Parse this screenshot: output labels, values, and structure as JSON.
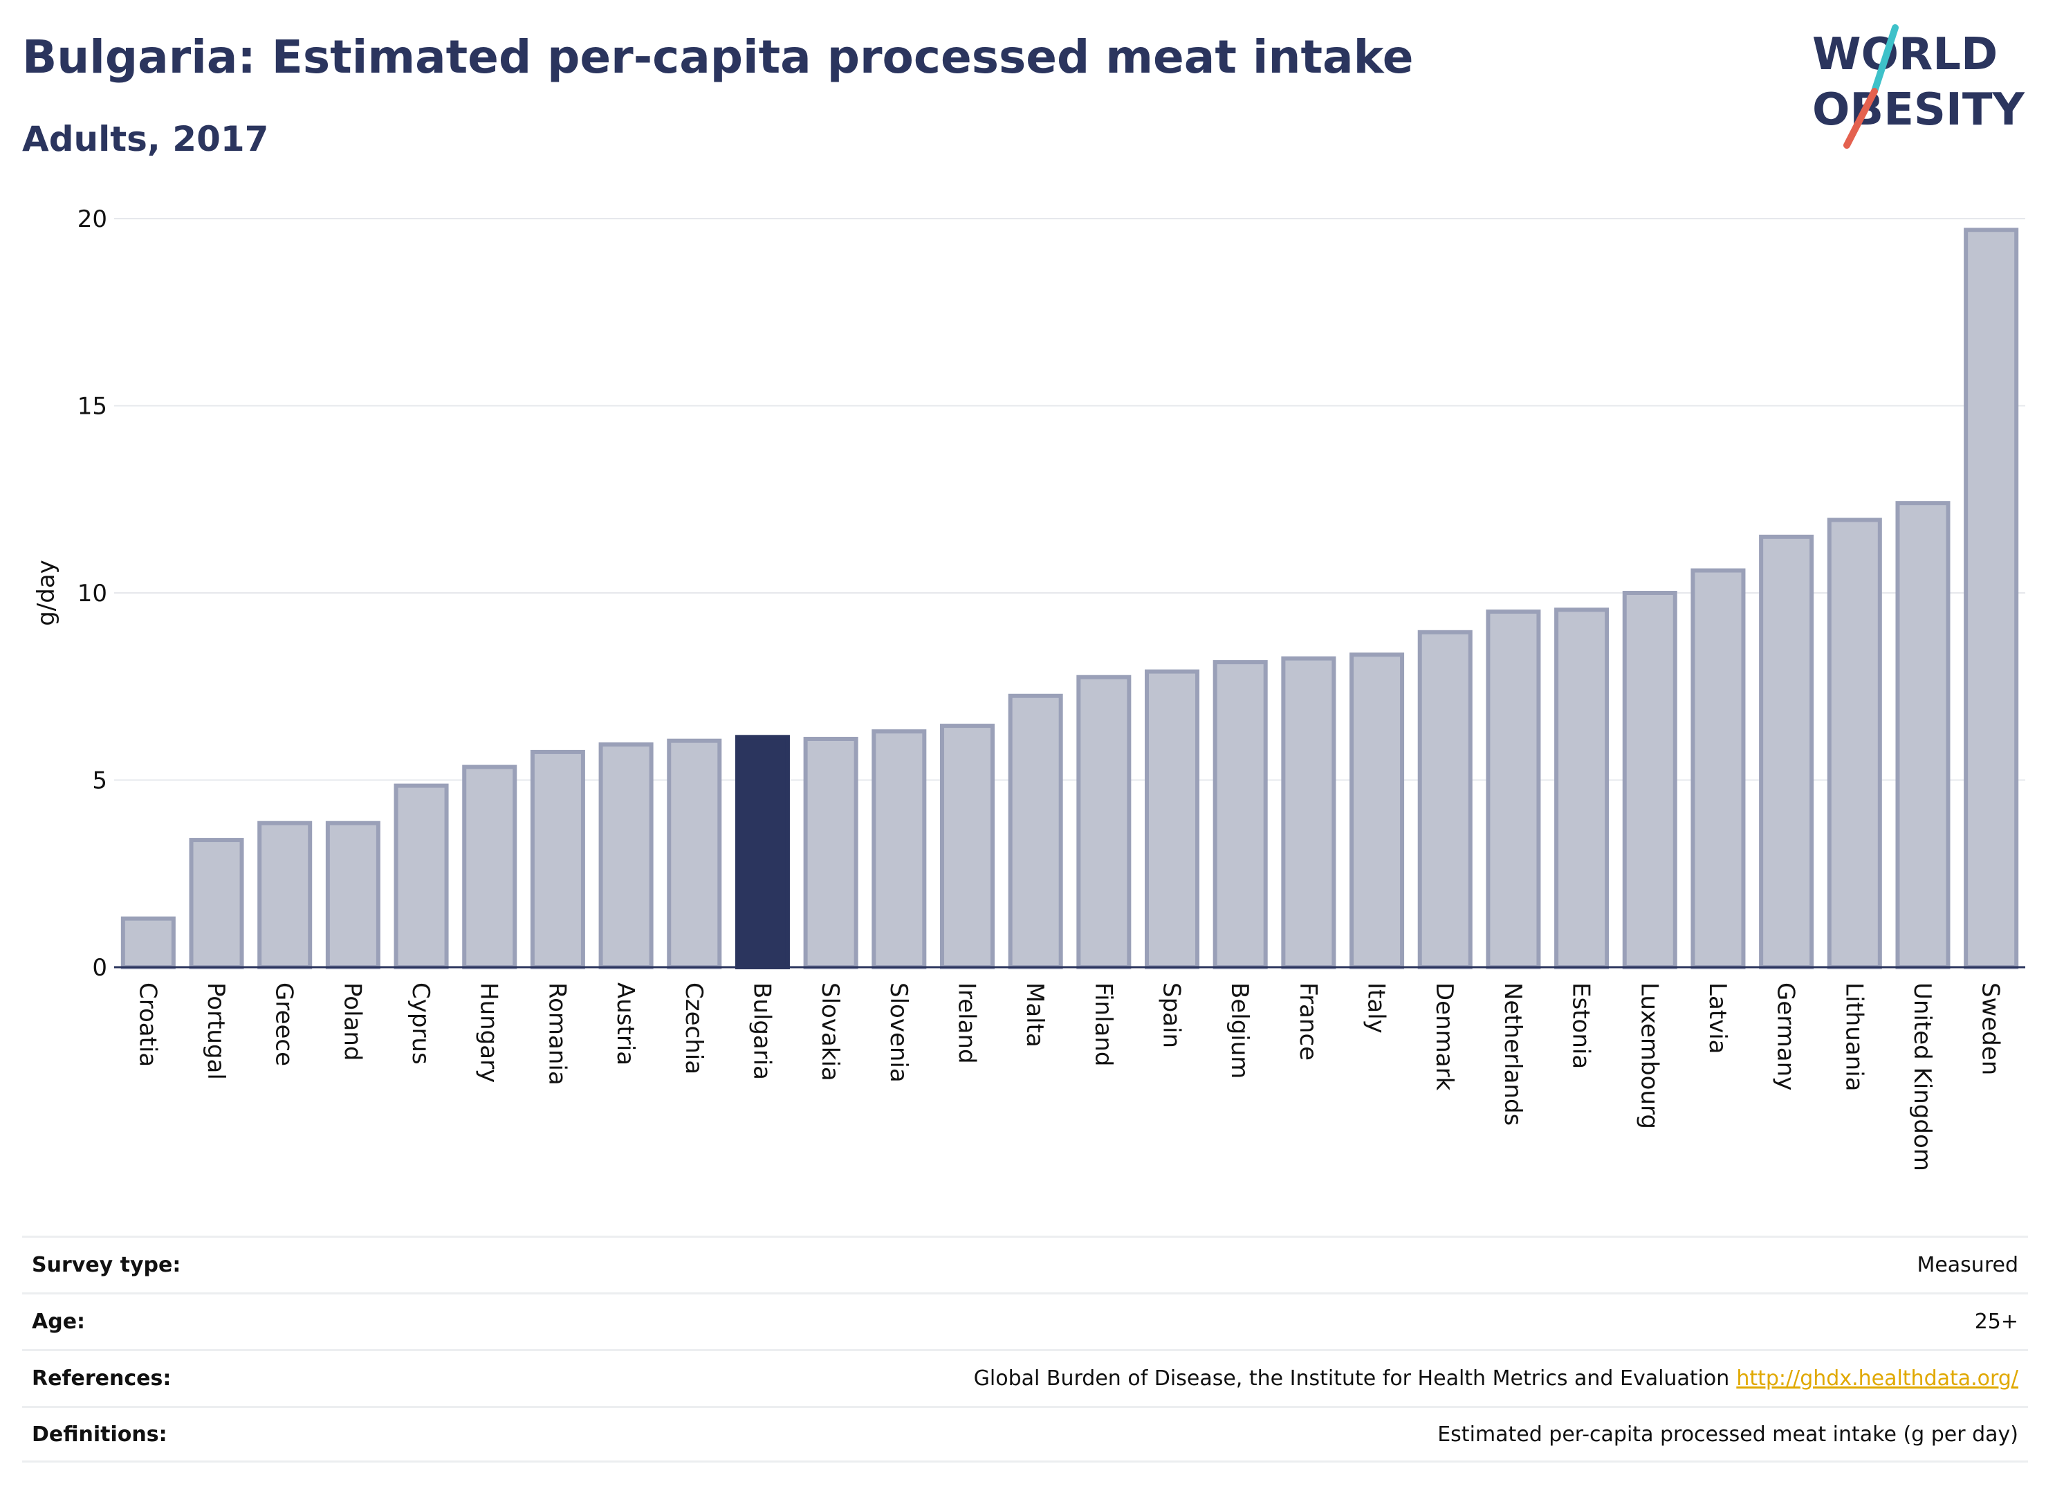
{
  "header": {
    "title": "Bulgaria: Estimated per-capita processed meat intake",
    "subtitle": "Adults, 2017"
  },
  "logo": {
    "line1": "WORLD",
    "line2": "OBESITY",
    "accent_colors": [
      "#3ec1c9",
      "#e4614f"
    ]
  },
  "chart_data": {
    "type": "bar",
    "title": "Bulgaria: Estimated per-capita processed meat intake",
    "subtitle": "Adults, 2017",
    "xlabel": "",
    "ylabel": "g/day",
    "ylim": [
      0,
      20
    ],
    "yticks": [
      0,
      5,
      10,
      15,
      20
    ],
    "grid": true,
    "highlight": "Bulgaria",
    "colors": {
      "default_bar": "#bfc3d0",
      "default_edge": "#9aa0b8",
      "highlight_bar": "#2b355e"
    },
    "categories": [
      "Croatia",
      "Portugal",
      "Greece",
      "Poland",
      "Cyprus",
      "Hungary",
      "Romania",
      "Austria",
      "Czechia",
      "Bulgaria",
      "Slovakia",
      "Slovenia",
      "Ireland",
      "Malta",
      "Finland",
      "Spain",
      "Belgium",
      "France",
      "Italy",
      "Denmark",
      "Netherlands",
      "Estonia",
      "Luxembourg",
      "Latvia",
      "Germany",
      "Lithuania",
      "United Kingdom",
      "Sweden"
    ],
    "values": [
      1.3,
      3.4,
      3.85,
      3.85,
      4.85,
      5.35,
      5.75,
      5.95,
      6.05,
      6.15,
      6.1,
      6.3,
      6.45,
      7.25,
      7.75,
      7.9,
      8.15,
      8.25,
      8.35,
      8.95,
      9.5,
      9.55,
      10.0,
      10.6,
      11.5,
      11.95,
      12.4,
      19.7
    ]
  },
  "meta": {
    "rows": [
      {
        "key": "Survey type:",
        "value": "Measured"
      },
      {
        "key": "Age:",
        "value": "25+"
      },
      {
        "key": "References:",
        "value": "Global Burden of Disease, the Institute for Health Metrics and Evaluation",
        "link": "http://ghdx.healthdata.org/"
      },
      {
        "key": "Definitions:",
        "value": "Estimated per-capita processed meat intake (g per day)"
      }
    ]
  }
}
